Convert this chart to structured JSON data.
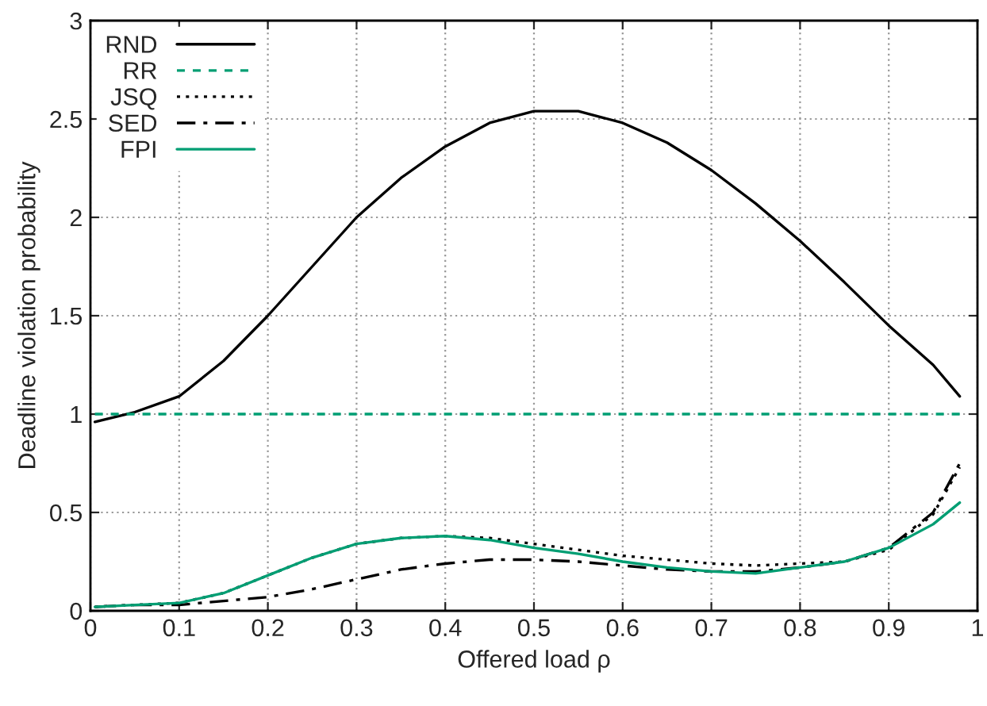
{
  "chart_data": {
    "type": "line",
    "xlabel": "Offered load ρ",
    "ylabel": "Deadline violation probability",
    "x": [
      0.005,
      0.05,
      0.1,
      0.15,
      0.2,
      0.25,
      0.3,
      0.35,
      0.4,
      0.45,
      0.5,
      0.55,
      0.6,
      0.65,
      0.7,
      0.75,
      0.8,
      0.85,
      0.9,
      0.95,
      0.98
    ],
    "series": [
      {
        "name": "RND",
        "color": "#000000",
        "line_style": "solid",
        "values": [
          0.96,
          1.01,
          1.09,
          1.27,
          1.5,
          1.75,
          2.0,
          2.2,
          2.36,
          2.48,
          2.54,
          2.54,
          2.48,
          2.38,
          2.24,
          2.07,
          1.88,
          1.67,
          1.45,
          1.25,
          1.09
        ]
      },
      {
        "name": "RR",
        "color": "#009e73",
        "line_style": "dashed",
        "values": [
          1,
          1,
          1,
          1,
          1,
          1,
          1,
          1,
          1,
          1,
          1,
          1,
          1,
          1,
          1,
          1,
          1,
          1,
          1,
          1,
          1
        ]
      },
      {
        "name": "JSQ",
        "color": "#000000",
        "line_style": "dotted",
        "values": [
          0.02,
          0.03,
          0.04,
          0.09,
          0.18,
          0.27,
          0.34,
          0.37,
          0.38,
          0.37,
          0.34,
          0.31,
          0.28,
          0.26,
          0.24,
          0.23,
          0.24,
          0.25,
          0.31,
          0.49,
          0.73
        ]
      },
      {
        "name": "SED",
        "color": "#000000",
        "line_style": "dashdot",
        "values": [
          0.02,
          0.03,
          0.03,
          0.05,
          0.07,
          0.11,
          0.16,
          0.21,
          0.24,
          0.26,
          0.26,
          0.25,
          0.23,
          0.21,
          0.2,
          0.2,
          0.22,
          0.25,
          0.32,
          0.5,
          0.75
        ]
      },
      {
        "name": "FPI",
        "color": "#009e73",
        "line_style": "solid",
        "values": [
          0.02,
          0.03,
          0.04,
          0.09,
          0.18,
          0.27,
          0.34,
          0.37,
          0.38,
          0.36,
          0.32,
          0.29,
          0.25,
          0.22,
          0.2,
          0.19,
          0.22,
          0.25,
          0.32,
          0.44,
          0.55
        ]
      }
    ],
    "xlim": [
      0,
      1
    ],
    "ylim": [
      0,
      3
    ],
    "xticks": [
      0,
      0.1,
      0.2,
      0.3,
      0.4,
      0.5,
      0.6,
      0.7,
      0.8,
      0.9,
      1
    ],
    "yticks": [
      0,
      0.5,
      1,
      1.5,
      2,
      2.5,
      3
    ],
    "grid": true,
    "legend": "top left"
  }
}
